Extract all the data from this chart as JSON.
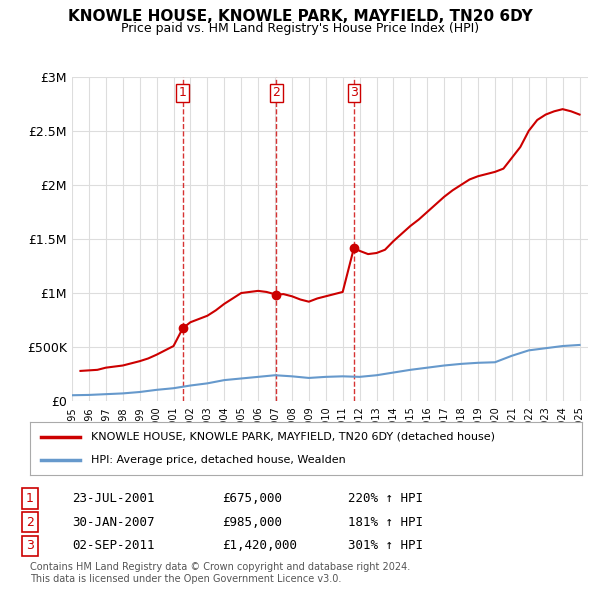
{
  "title": "KNOWLE HOUSE, KNOWLE PARK, MAYFIELD, TN20 6DY",
  "subtitle": "Price paid vs. HM Land Registry's House Price Index (HPI)",
  "legend_line1": "KNOWLE HOUSE, KNOWLE PARK, MAYFIELD, TN20 6DY (detached house)",
  "legend_line2": "HPI: Average price, detached house, Wealden",
  "sale_color": "#cc0000",
  "hpi_color": "#6699cc",
  "vline_color": "#cc0000",
  "background_color": "#ffffff",
  "grid_color": "#dddddd",
  "ylim": [
    0,
    3000000
  ],
  "yticks": [
    0,
    500000,
    1000000,
    1500000,
    2000000,
    2500000,
    3000000
  ],
  "ytick_labels": [
    "£0",
    "£500K",
    "£1M",
    "£1.5M",
    "£2M",
    "£2.5M",
    "£3M"
  ],
  "sales": [
    {
      "date_num": 2001.55,
      "price": 675000,
      "label": "1",
      "date_str": "23-JUL-2001",
      "pct": "220%"
    },
    {
      "date_num": 2007.08,
      "price": 985000,
      "label": "2",
      "date_str": "30-JAN-2007",
      "pct": "181%"
    },
    {
      "date_num": 2011.67,
      "price": 1420000,
      "label": "3",
      "date_str": "02-SEP-2011",
      "pct": "301%"
    }
  ],
  "table_rows": [
    {
      "num": "1",
      "date": "23-JUL-2001",
      "price": "£675,000",
      "pct": "220% ↑ HPI"
    },
    {
      "num": "2",
      "date": "30-JAN-2007",
      "price": "£985,000",
      "pct": "181% ↑ HPI"
    },
    {
      "num": "3",
      "date": "02-SEP-2011",
      "price": "£1,420,000",
      "pct": "301% ↑ HPI"
    }
  ],
  "footer": "Contains HM Land Registry data © Crown copyright and database right 2024.\nThis data is licensed under the Open Government Licence v3.0.",
  "hpi_data": {
    "years": [
      1995,
      1996,
      1997,
      1998,
      1999,
      2000,
      2001,
      2002,
      2003,
      2004,
      2005,
      2006,
      2007,
      2008,
      2009,
      2010,
      2011,
      2012,
      2013,
      2014,
      2015,
      2016,
      2017,
      2018,
      2019,
      2020,
      2021,
      2022,
      2023,
      2024,
      2025
    ],
    "values": [
      55000,
      58000,
      65000,
      72000,
      85000,
      105000,
      120000,
      145000,
      165000,
      195000,
      210000,
      225000,
      240000,
      230000,
      215000,
      225000,
      230000,
      225000,
      240000,
      265000,
      290000,
      310000,
      330000,
      345000,
      355000,
      360000,
      420000,
      470000,
      490000,
      510000,
      520000
    ]
  },
  "price_index_data": {
    "years": [
      1995.5,
      1996,
      1996.5,
      1997,
      1997.5,
      1998,
      1998.5,
      1999,
      1999.5,
      2000,
      2000.5,
      2001,
      2001.55,
      2002,
      2002.5,
      2003,
      2003.5,
      2004,
      2004.5,
      2005,
      2005.5,
      2006,
      2006.5,
      2007.08,
      2007.5,
      2008,
      2008.5,
      2009,
      2009.5,
      2010,
      2010.5,
      2011,
      2011.67,
      2012,
      2012.5,
      2013,
      2013.5,
      2014,
      2014.5,
      2015,
      2015.5,
      2016,
      2016.5,
      2017,
      2017.5,
      2018,
      2018.5,
      2019,
      2019.5,
      2020,
      2020.5,
      2021,
      2021.5,
      2022,
      2022.5,
      2023,
      2023.5,
      2024,
      2024.5,
      2025
    ],
    "values": [
      280000,
      285000,
      290000,
      310000,
      320000,
      330000,
      350000,
      370000,
      395000,
      430000,
      470000,
      510000,
      675000,
      730000,
      760000,
      790000,
      840000,
      900000,
      950000,
      1000000,
      1010000,
      1020000,
      1010000,
      985000,
      990000,
      970000,
      940000,
      920000,
      950000,
      970000,
      990000,
      1010000,
      1420000,
      1390000,
      1360000,
      1370000,
      1400000,
      1480000,
      1550000,
      1620000,
      1680000,
      1750000,
      1820000,
      1890000,
      1950000,
      2000000,
      2050000,
      2080000,
      2100000,
      2120000,
      2150000,
      2250000,
      2350000,
      2500000,
      2600000,
      2650000,
      2680000,
      2700000,
      2680000,
      2650000
    ]
  }
}
